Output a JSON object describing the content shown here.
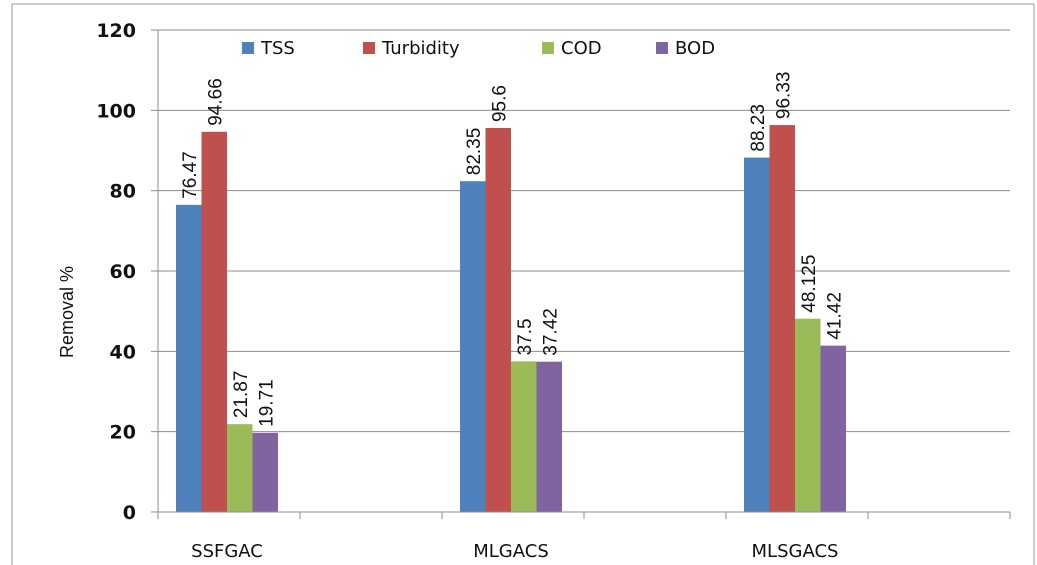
{
  "chart_data": {
    "type": "bar",
    "categories": [
      "SSFGAC",
      "MLGACS",
      "MLSGACS"
    ],
    "series": [
      {
        "name": "TSS",
        "values": [
          76.47,
          82.35,
          88.23
        ],
        "labels": [
          "76.47",
          "82.35",
          "88.23"
        ],
        "color": "#4f81bd"
      },
      {
        "name": "Turbidity",
        "values": [
          94.66,
          95.6,
          96.33
        ],
        "labels": [
          "94.66",
          "95.6",
          "96.33"
        ],
        "color": "#c0504d"
      },
      {
        "name": "COD",
        "values": [
          21.87,
          37.5,
          48.125
        ],
        "labels": [
          "21.87",
          "37.5",
          "48.125"
        ],
        "color": "#9bbb59"
      },
      {
        "name": "BOD",
        "values": [
          19.71,
          37.42,
          41.42
        ],
        "labels": [
          "19.71",
          "37.42",
          "41.42"
        ],
        "color": "#8064a2"
      }
    ],
    "ylabel": "Removal %",
    "xlabel": "",
    "title": "",
    "ylim": [
      0,
      120
    ],
    "yticks": [
      "0",
      "20",
      "40",
      "60",
      "80",
      "100",
      "120"
    ],
    "grid": true,
    "legend_position": "top"
  }
}
